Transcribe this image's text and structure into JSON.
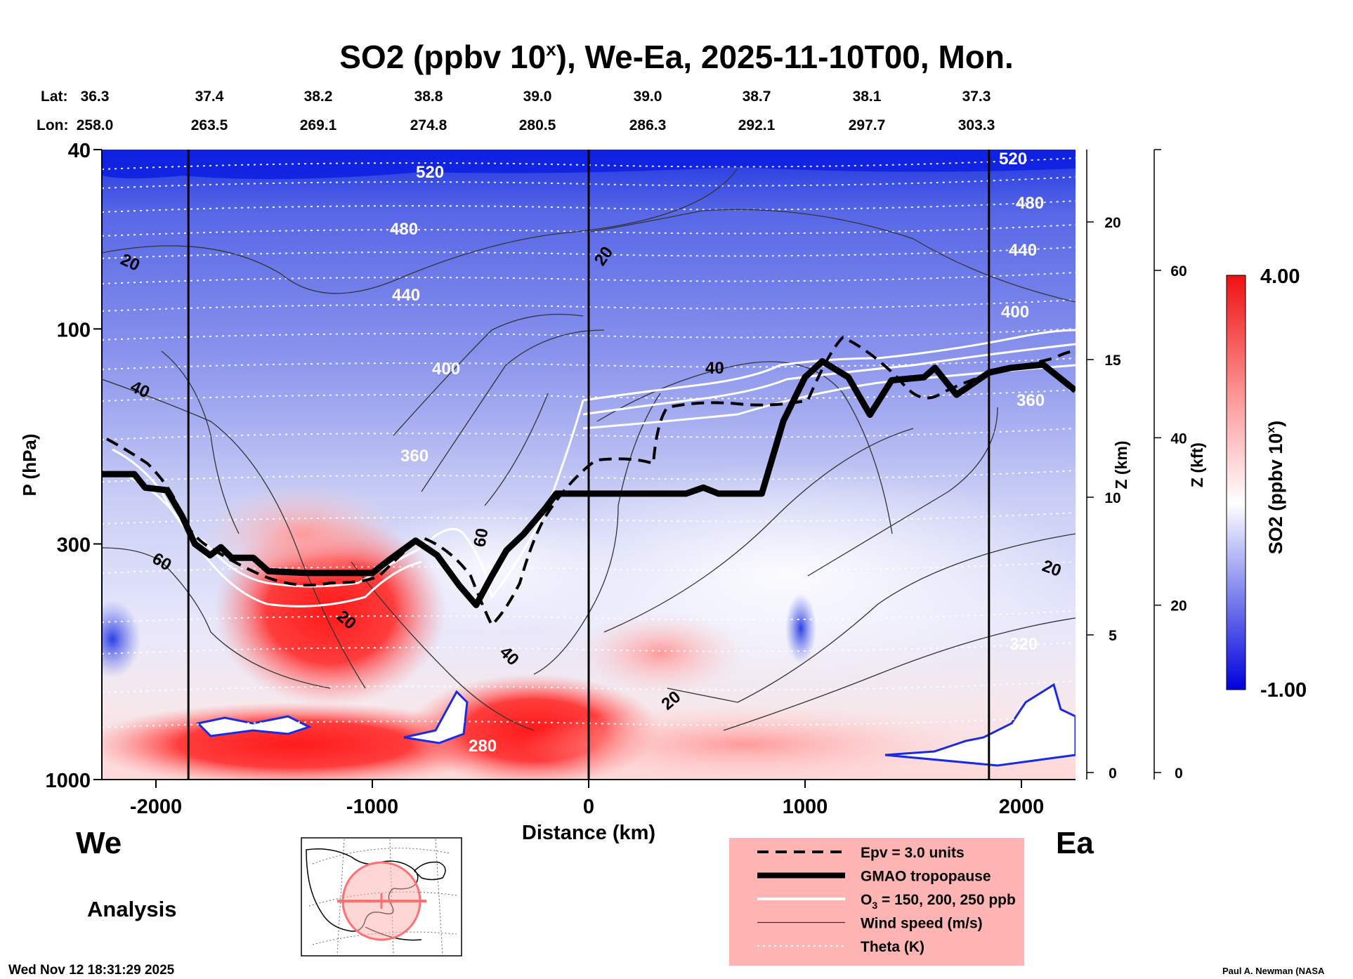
{
  "chart_data": {
    "type": "heatmap",
    "title": "SO2 (ppbv 10",
    "title_sup": "x",
    "title_rest": "), We-Ea, 2025-11-10T00, Mon.",
    "lat_label": "Lat:",
    "lon_label": "Lon:",
    "cross_section": [
      {
        "lat": "36.3",
        "lon": "258.0"
      },
      {
        "lat": "37.4",
        "lon": "263.5"
      },
      {
        "lat": "38.2",
        "lon": "269.1"
      },
      {
        "lat": "38.8",
        "lon": "274.8"
      },
      {
        "lat": "39.0",
        "lon": "280.5"
      },
      {
        "lat": "39.0",
        "lon": "286.3"
      },
      {
        "lat": "38.7",
        "lon": "292.1"
      },
      {
        "lat": "38.1",
        "lon": "297.7"
      },
      {
        "lat": "37.3",
        "lon": "303.3"
      }
    ],
    "xlabel": "Distance (km)",
    "xlim": [
      -2250,
      2250
    ],
    "x_ticks": [
      -2000,
      -1000,
      0,
      1000,
      2000
    ],
    "x_tick_labels": [
      "-2000",
      "-1000",
      "0",
      "1000",
      "2000"
    ],
    "ylabel": "P (hPa)",
    "ylim": [
      1000,
      40
    ],
    "y_scale": "log",
    "y_ticks": [
      40,
      100,
      300,
      1000
    ],
    "y_tick_labels": [
      "40",
      "100",
      "300",
      "1000"
    ],
    "z_km_label": "Z (km)",
    "z_km_ticks": [
      0,
      5,
      10,
      15,
      20
    ],
    "z_km_tick_labels": [
      "0",
      "5",
      "10",
      "15",
      "20"
    ],
    "z_kft_label": "Z (kft)",
    "z_kft_ticks": [
      0,
      20,
      40,
      60
    ],
    "z_kft_tick_labels": [
      "0",
      "20",
      "40",
      "60"
    ],
    "west_label": "We",
    "east_label": "Ea",
    "analysis_label": "Analysis",
    "colorbar": {
      "label": "SO2 (ppbv 10",
      "label_sup": "x",
      "label_rest": ")",
      "max_label": "4.00",
      "min_label": "-1.00",
      "min": -1.0,
      "max": 4.0,
      "low_color": "#0000dd",
      "mid_color": "#ffffff",
      "high_color": "#ff0000"
    },
    "vertical_guides_km": [
      -1850,
      0,
      1850
    ],
    "tropopause_hpa": [
      {
        "x": -2250,
        "p": 210
      },
      {
        "x": -2100,
        "p": 210
      },
      {
        "x": -2050,
        "p": 225
      },
      {
        "x": -1950,
        "p": 228
      },
      {
        "x": -1880,
        "p": 260
      },
      {
        "x": -1820,
        "p": 300
      },
      {
        "x": -1750,
        "p": 318
      },
      {
        "x": -1700,
        "p": 305
      },
      {
        "x": -1650,
        "p": 322
      },
      {
        "x": -1550,
        "p": 322
      },
      {
        "x": -1480,
        "p": 345
      },
      {
        "x": -1300,
        "p": 348
      },
      {
        "x": -1000,
        "p": 348
      },
      {
        "x": -920,
        "p": 325
      },
      {
        "x": -800,
        "p": 295
      },
      {
        "x": -700,
        "p": 318
      },
      {
        "x": -600,
        "p": 370
      },
      {
        "x": -520,
        "p": 410
      },
      {
        "x": -450,
        "p": 355
      },
      {
        "x": -380,
        "p": 310
      },
      {
        "x": -300,
        "p": 285
      },
      {
        "x": -200,
        "p": 250
      },
      {
        "x": -150,
        "p": 232
      },
      {
        "x": 0,
        "p": 232
      },
      {
        "x": 450,
        "p": 232
      },
      {
        "x": 530,
        "p": 225
      },
      {
        "x": 600,
        "p": 232
      },
      {
        "x": 800,
        "p": 232
      },
      {
        "x": 900,
        "p": 160
      },
      {
        "x": 1000,
        "p": 128
      },
      {
        "x": 1080,
        "p": 118
      },
      {
        "x": 1200,
        "p": 128
      },
      {
        "x": 1300,
        "p": 155
      },
      {
        "x": 1400,
        "p": 130
      },
      {
        "x": 1550,
        "p": 128
      },
      {
        "x": 1600,
        "p": 122
      },
      {
        "x": 1700,
        "p": 140
      },
      {
        "x": 1850,
        "p": 125
      },
      {
        "x": 1950,
        "p": 122
      },
      {
        "x": 2100,
        "p": 120
      },
      {
        "x": 2250,
        "p": 137
      }
    ],
    "theta_levels_k": [
      280,
      320,
      360,
      400,
      440,
      480,
      520
    ],
    "theta_labels": [
      "280",
      "320",
      "360",
      "400",
      "440",
      "480",
      "520"
    ],
    "wind_labels": [
      "20",
      "40",
      "60"
    ],
    "legend": [
      {
        "label": "Epv = 3.0 units",
        "style": "dashed"
      },
      {
        "label": "GMAO tropopause",
        "style": "thick"
      },
      {
        "label": "O",
        "sub": "3",
        "rest": " = 150, 200, 250 ppb",
        "style": "white"
      },
      {
        "label": "Wind speed (m/s)",
        "style": "thin"
      },
      {
        "label": "Theta (K)",
        "style": "dotted"
      }
    ],
    "legend_bg": "#ffb4b4",
    "timestamp": "Wed Nov 12 18:31:29 2025",
    "credit": "Paul A. Newman (NASA"
  }
}
